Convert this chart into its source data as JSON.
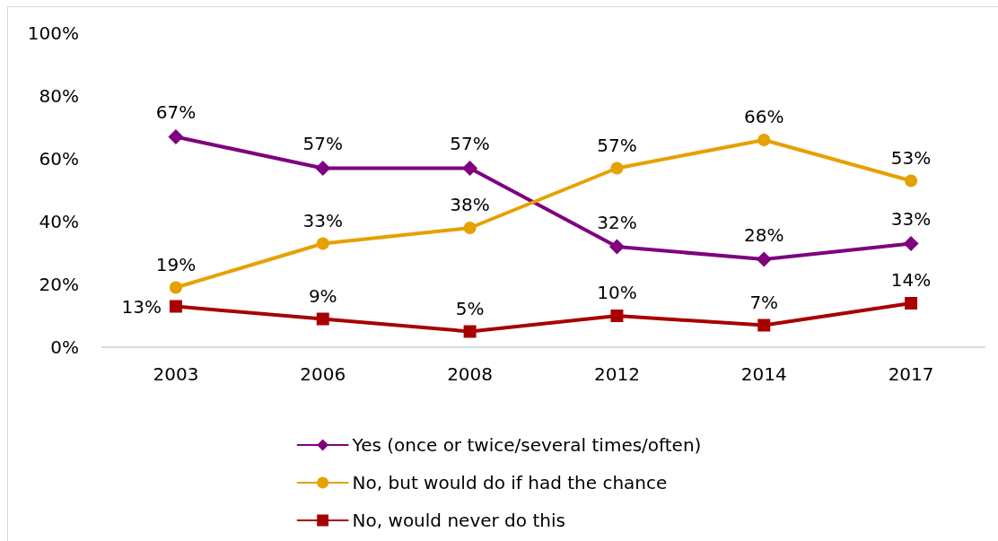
{
  "chart_data": {
    "type": "line",
    "categories": [
      "2003",
      "2006",
      "2008",
      "2012",
      "2014",
      "2017"
    ],
    "series": [
      {
        "name": "Yes (once or twice/several times/often)",
        "color": "#7f007f",
        "marker": "diamond",
        "values": [
          67,
          57,
          57,
          32,
          28,
          33
        ],
        "value_labels": [
          "67%",
          "57%",
          "57%",
          "32%",
          "28%",
          "33%"
        ]
      },
      {
        "name": "No, but would do if had the chance",
        "color": "#e6a000",
        "marker": "circle",
        "values": [
          19,
          33,
          38,
          57,
          66,
          53
        ],
        "value_labels": [
          "19%",
          "33%",
          "38%",
          "57%",
          "66%",
          "53%"
        ]
      },
      {
        "name": "No, would never do this",
        "color": "#a80000",
        "marker": "square",
        "values": [
          13,
          9,
          5,
          10,
          7,
          14
        ],
        "value_labels": [
          "13%",
          "9%",
          "5%",
          "10%",
          "7%",
          "14%"
        ]
      }
    ],
    "ylim": [
      0,
      100
    ],
    "yticks": [
      {
        "value": 0,
        "label": "0%"
      },
      {
        "value": 20,
        "label": "20%"
      },
      {
        "value": 40,
        "label": "40%"
      },
      {
        "value": 60,
        "label": "60%"
      },
      {
        "value": 80,
        "label": "80%"
      },
      {
        "value": 100,
        "label": "100%"
      }
    ],
    "grid": false,
    "legend": "bottom",
    "line_style": "solid"
  }
}
